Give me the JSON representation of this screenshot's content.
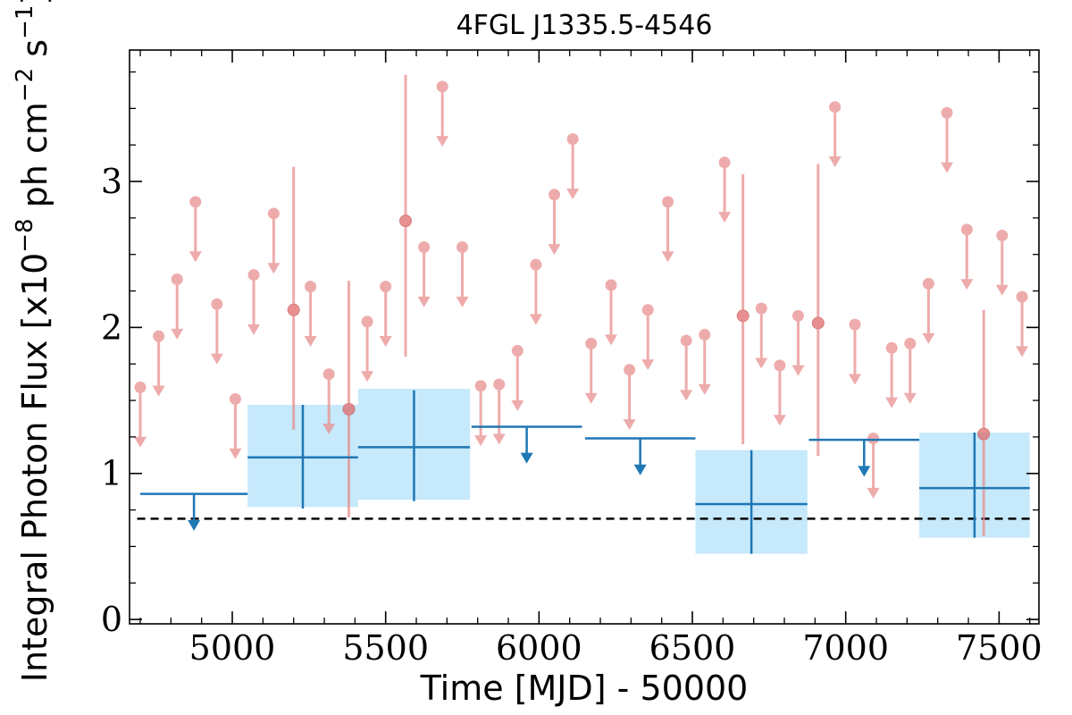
{
  "chart_data": {
    "type": "scatter",
    "title": "4FGL J1335.5-4546",
    "xlabel": "Time [MJD] - 50000",
    "ylabel": "Integral Photon Flux [x10",
    "ylabel_exp1": "−8",
    "ylabel_mid": " ph cm",
    "ylabel_exp2": "−2",
    "ylabel_s": " s",
    "ylabel_exp3": "−1",
    "ylabel_end": "]",
    "xlim": [
      4665,
      7630
    ],
    "ylim": [
      -0.03,
      3.9
    ],
    "xticks": [
      5000,
      5500,
      6000,
      6500,
      7000,
      7500
    ],
    "xtick_labels": [
      "5000",
      "5500",
      "6000",
      "6500",
      "7000",
      "7500"
    ],
    "yticks": [
      0,
      1,
      2,
      3
    ],
    "ytick_labels": [
      "0",
      "1",
      "2",
      "3"
    ],
    "grid": false,
    "reference_line": {
      "y": 0.69,
      "style": "dashed",
      "color": "#000000"
    },
    "colors": {
      "short_bins": "#e88c8c",
      "short_bin_detection": "#e06666",
      "long_bins": "#1f77b4",
      "long_band": "#c6e9fb"
    },
    "short_bin_upper_limits": [
      {
        "x": 4700,
        "y": 1.59
      },
      {
        "x": 4760,
        "y": 1.94
      },
      {
        "x": 4820,
        "y": 2.33
      },
      {
        "x": 4880,
        "y": 2.86
      },
      {
        "x": 4950,
        "y": 2.16
      },
      {
        "x": 5010,
        "y": 1.51
      },
      {
        "x": 5070,
        "y": 2.36
      },
      {
        "x": 5135,
        "y": 2.78
      },
      {
        "x": 5255,
        "y": 2.28
      },
      {
        "x": 5315,
        "y": 1.68
      },
      {
        "x": 5440,
        "y": 2.04
      },
      {
        "x": 5500,
        "y": 2.28
      },
      {
        "x": 5625,
        "y": 2.55
      },
      {
        "x": 5685,
        "y": 3.65
      },
      {
        "x": 5750,
        "y": 2.55
      },
      {
        "x": 5810,
        "y": 1.6
      },
      {
        "x": 5870,
        "y": 1.61
      },
      {
        "x": 5930,
        "y": 1.84
      },
      {
        "x": 5990,
        "y": 2.43
      },
      {
        "x": 6050,
        "y": 2.91
      },
      {
        "x": 6110,
        "y": 3.29
      },
      {
        "x": 6170,
        "y": 1.89
      },
      {
        "x": 6235,
        "y": 2.29
      },
      {
        "x": 6295,
        "y": 1.71
      },
      {
        "x": 6355,
        "y": 2.12
      },
      {
        "x": 6420,
        "y": 2.86
      },
      {
        "x": 6480,
        "y": 1.91
      },
      {
        "x": 6540,
        "y": 1.95
      },
      {
        "x": 6605,
        "y": 3.13
      },
      {
        "x": 6725,
        "y": 2.13
      },
      {
        "x": 6785,
        "y": 1.74
      },
      {
        "x": 6845,
        "y": 2.08
      },
      {
        "x": 6965,
        "y": 3.51
      },
      {
        "x": 7030,
        "y": 2.02
      },
      {
        "x": 7090,
        "y": 1.24
      },
      {
        "x": 7150,
        "y": 1.86
      },
      {
        "x": 7210,
        "y": 1.89
      },
      {
        "x": 7270,
        "y": 2.3
      },
      {
        "x": 7330,
        "y": 3.47
      },
      {
        "x": 7395,
        "y": 2.67
      },
      {
        "x": 7510,
        "y": 2.63
      },
      {
        "x": 7575,
        "y": 2.21
      }
    ],
    "short_bin_detections": [
      {
        "x": 5200,
        "y": 2.12,
        "ylo": 1.3,
        "yhi": 3.1
      },
      {
        "x": 5380,
        "y": 1.44,
        "ylo": 0.7,
        "yhi": 2.32
      },
      {
        "x": 5565,
        "y": 2.73,
        "ylo": 1.8,
        "yhi": 3.73
      },
      {
        "x": 6665,
        "y": 2.08,
        "ylo": 1.2,
        "yhi": 3.05
      },
      {
        "x": 6910,
        "y": 2.03,
        "ylo": 1.12,
        "yhi": 3.12
      },
      {
        "x": 7450,
        "y": 1.27,
        "ylo": 0.57,
        "yhi": 2.12
      }
    ],
    "long_bin_upper_limits": [
      {
        "x0": 4700,
        "x1": 5050,
        "y": 0.86
      },
      {
        "x0": 5780,
        "x1": 6140,
        "y": 1.32
      },
      {
        "x0": 6150,
        "x1": 6510,
        "y": 1.24
      },
      {
        "x0": 6880,
        "x1": 7240,
        "y": 1.23
      }
    ],
    "long_bin_detections": [
      {
        "x0": 5050,
        "x1": 5410,
        "y": 1.11,
        "ylo": 0.76,
        "yhi": 1.47,
        "band_lo": 0.77,
        "band_hi": 1.47
      },
      {
        "x0": 5410,
        "x1": 5775,
        "y": 1.18,
        "ylo": 0.81,
        "yhi": 1.57,
        "band_lo": 0.82,
        "band_hi": 1.58
      },
      {
        "x0": 6510,
        "x1": 6875,
        "y": 0.79,
        "ylo": 0.45,
        "yhi": 1.16,
        "band_lo": 0.45,
        "band_hi": 1.16
      },
      {
        "x0": 7240,
        "x1": 7600,
        "y": 0.9,
        "ylo": 0.56,
        "yhi": 1.28,
        "band_lo": 0.56,
        "band_hi": 1.28
      }
    ]
  }
}
